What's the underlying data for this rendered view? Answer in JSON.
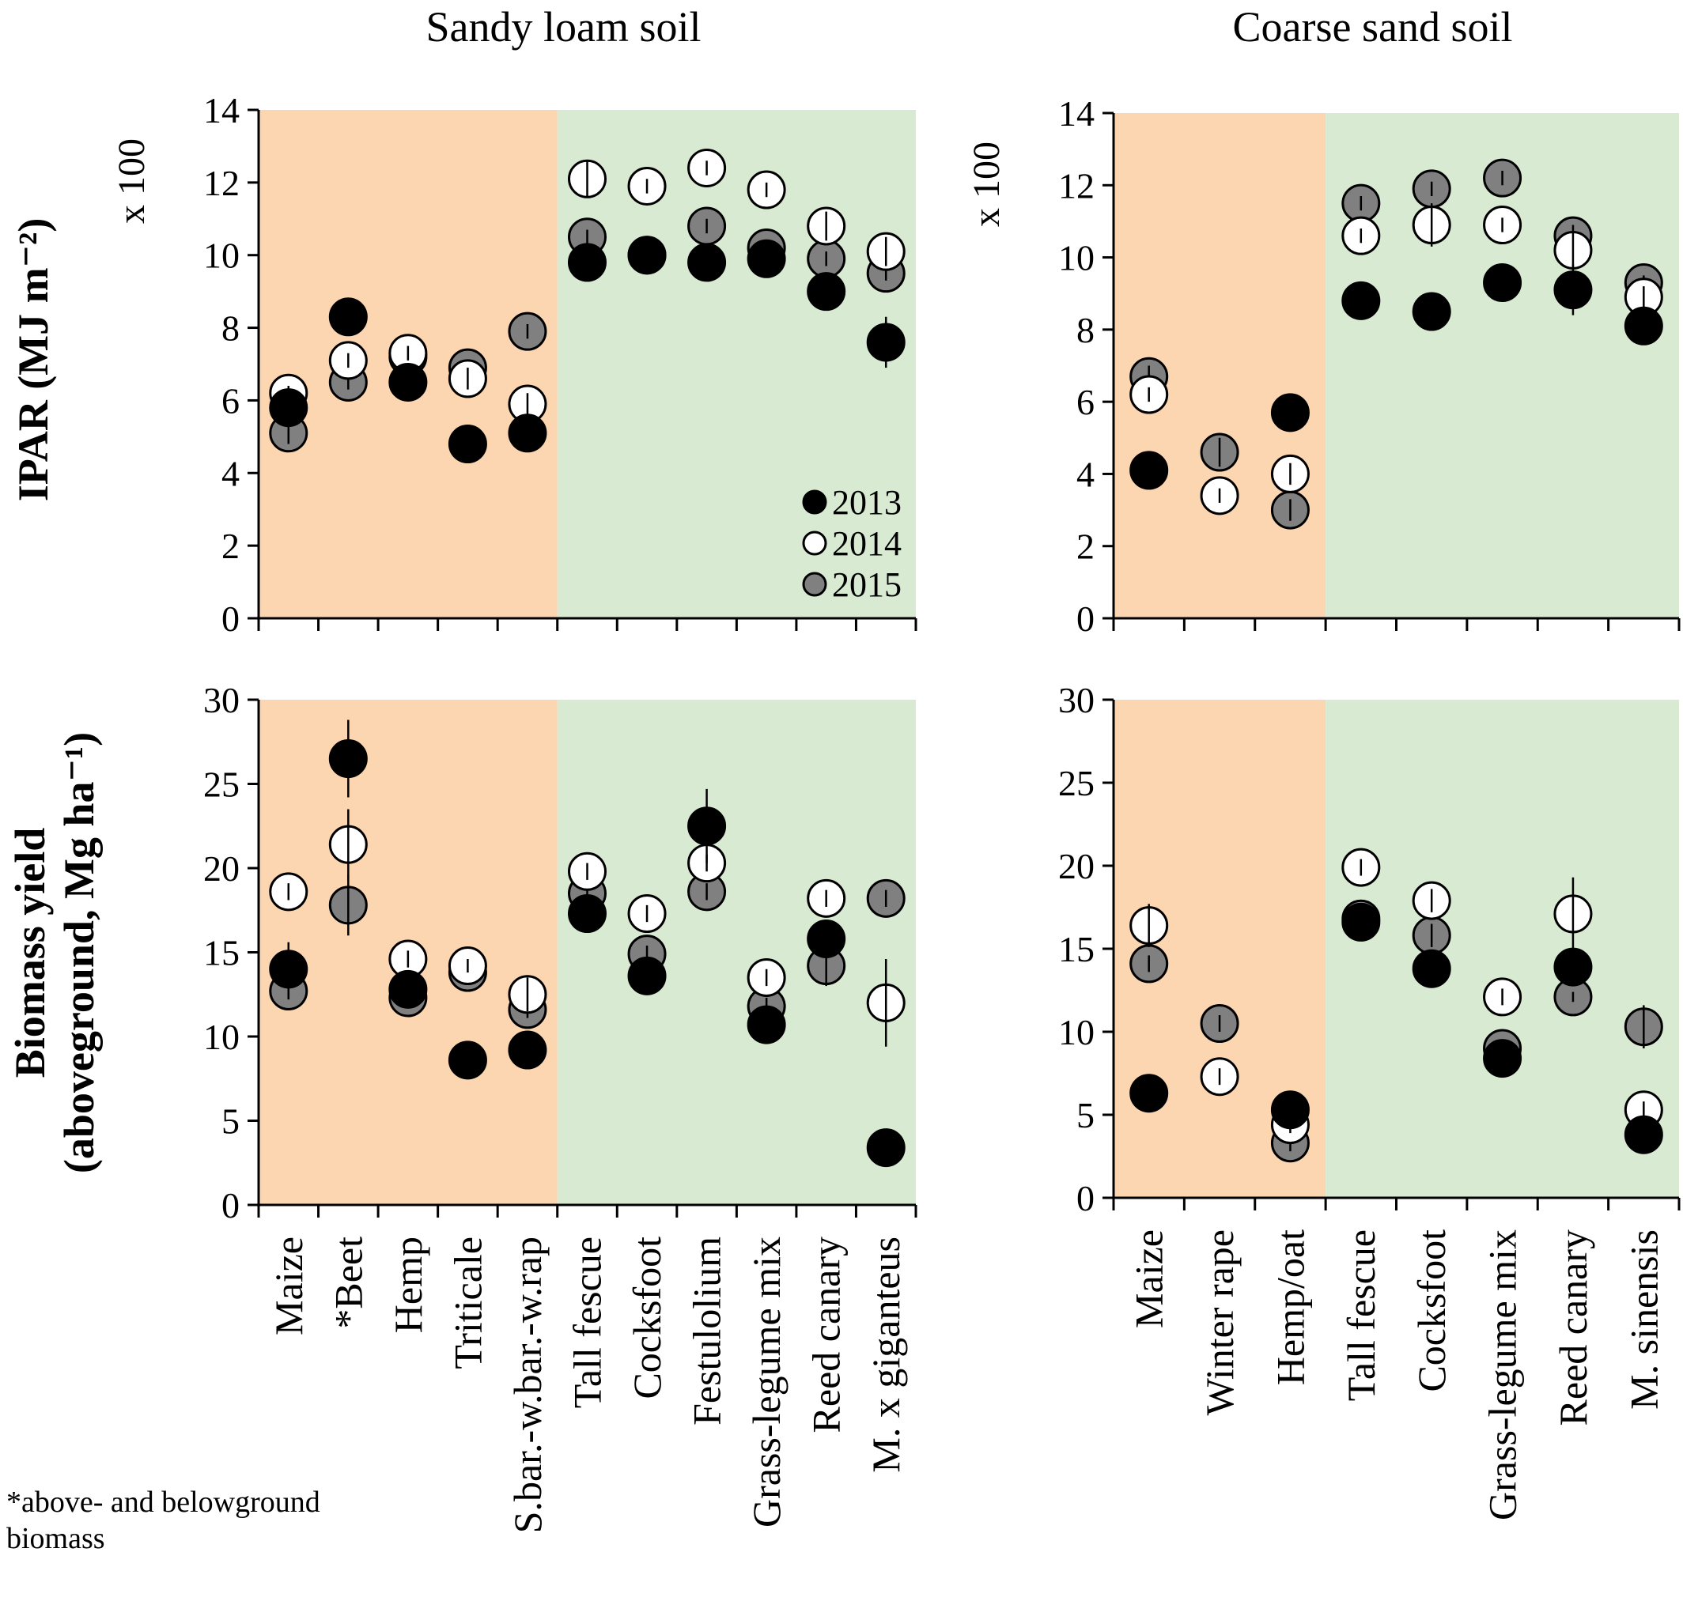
{
  "footnote": {
    "line1": "*above- and belowground",
    "line2": "biomass"
  },
  "colors": {
    "annual_bg": "#fcd5b1",
    "perennial_bg": "#d9ead3",
    "y2013": "#000000",
    "y2014": "#ffffff",
    "y2015": "#808080"
  },
  "chart_data": [
    {
      "type": "scatter",
      "title": "Sandy loam soil",
      "ylabel": "IPAR (MJ m⁻²)",
      "ylabel_multiplier": "x 100",
      "ylim": [
        0,
        14
      ],
      "yticks": [
        0,
        2,
        4,
        6,
        8,
        10,
        12,
        14
      ],
      "grid": false,
      "legend_position": "bottom-right",
      "annual_count": 5,
      "categories": [
        "Maize",
        "*Beet",
        "Hemp",
        "Triticale",
        "S.bar.-w.bar.-w.rap",
        "Tall fescue",
        "Cocksfoot",
        "Festulolium",
        "Grass-legume mix",
        "Reed canary",
        "M. x giganteus"
      ],
      "series": [
        {
          "name": "2013",
          "values": [
            5.8,
            8.3,
            6.5,
            4.8,
            5.1,
            9.8,
            10.0,
            9.8,
            9.9,
            9.0,
            7.6
          ],
          "errors": [
            0.4,
            0.2,
            0.2,
            0.2,
            0.2,
            0.2,
            0.2,
            0.2,
            0.2,
            0.2,
            0.7
          ]
        },
        {
          "name": "2014",
          "values": [
            6.2,
            7.1,
            7.3,
            6.6,
            5.9,
            12.1,
            11.9,
            12.4,
            11.8,
            10.8,
            10.1
          ],
          "errors": [
            0.2,
            0.2,
            0.2,
            0.3,
            0.3,
            0.5,
            0.2,
            0.2,
            0.2,
            0.4,
            0.4
          ]
        },
        {
          "name": "2015",
          "values": [
            5.1,
            6.5,
            7.2,
            6.9,
            7.9,
            10.5,
            10.0,
            10.8,
            10.2,
            9.9,
            9.5
          ],
          "errors": [
            0.3,
            0.2,
            0.3,
            0.2,
            0.2,
            0.2,
            0.2,
            0.2,
            0.2,
            0.2,
            0.2
          ]
        }
      ]
    },
    {
      "type": "scatter",
      "title": "Coarse sand soil",
      "ylabel": "",
      "ylabel_multiplier": "x 100",
      "ylim": [
        0,
        14
      ],
      "yticks": [
        0,
        2,
        4,
        6,
        8,
        10,
        12,
        14
      ],
      "grid": false,
      "annual_count": 3,
      "categories": [
        "Maize",
        "Winter rape",
        "Hemp/oat",
        "Tall fescue",
        "Cocksfoot",
        "Grass-legume mix",
        "Reed canary",
        "M. sinensis"
      ],
      "series": [
        {
          "name": "2013",
          "values": [
            4.1,
            null,
            5.7,
            8.8,
            8.5,
            9.3,
            9.1,
            8.1
          ],
          "errors": [
            0.2,
            0,
            0.2,
            0.2,
            0.2,
            0.2,
            0.7,
            0.2
          ]
        },
        {
          "name": "2014",
          "values": [
            6.2,
            3.4,
            4.0,
            10.6,
            10.9,
            10.9,
            10.2,
            8.9
          ],
          "errors": [
            0.2,
            0.2,
            0.3,
            0.2,
            0.6,
            0.2,
            0.5,
            0.3
          ]
        },
        {
          "name": "2015",
          "values": [
            6.7,
            4.6,
            3.0,
            11.5,
            11.9,
            12.2,
            10.6,
            9.3
          ],
          "errors": [
            0.3,
            0.4,
            0.3,
            0.2,
            0.2,
            0.2,
            0.3,
            0.2
          ]
        }
      ]
    },
    {
      "type": "scatter",
      "title": "",
      "ylabel_line1": "Biomass yield",
      "ylabel_line2": "(aboveground, Mg ha⁻¹)",
      "ylim": [
        0,
        30
      ],
      "yticks": [
        0,
        5,
        10,
        15,
        20,
        25,
        30
      ],
      "grid": false,
      "annual_count": 5,
      "categories": [
        "Maize",
        "*Beet",
        "Hemp",
        "Triticale",
        "S.bar.-w.bar.-w.rap",
        "Tall fescue",
        "Cocksfoot",
        "Festulolium",
        "Grass-legume mix",
        "Reed canary",
        "M. x giganteus"
      ],
      "series": [
        {
          "name": "2013",
          "values": [
            14.0,
            26.5,
            12.8,
            8.6,
            9.2,
            17.3,
            13.6,
            22.5,
            10.7,
            15.8,
            3.4
          ],
          "errors": [
            1.6,
            2.3,
            0.5,
            0.4,
            0.5,
            0.4,
            0.5,
            2.2,
            0.5,
            0.5,
            0.3
          ]
        },
        {
          "name": "2014",
          "values": [
            18.6,
            21.4,
            14.6,
            14.2,
            12.5,
            19.8,
            17.3,
            20.3,
            13.5,
            18.2,
            12.0
          ],
          "errors": [
            0.5,
            2.1,
            0.5,
            0.4,
            1.0,
            0.5,
            0.5,
            0.5,
            0.5,
            0.5,
            2.6
          ]
        },
        {
          "name": "2015",
          "values": [
            12.7,
            17.8,
            12.3,
            13.8,
            11.6,
            18.5,
            14.9,
            18.6,
            11.8,
            14.2,
            18.2
          ],
          "errors": [
            0.5,
            1.8,
            0.5,
            0.5,
            0.5,
            0.5,
            0.5,
            0.5,
            0.5,
            1.2,
            0.5
          ]
        }
      ]
    },
    {
      "type": "scatter",
      "title": "",
      "ylabel": "",
      "ylim": [
        0,
        30
      ],
      "yticks": [
        0,
        5,
        10,
        15,
        20,
        25,
        30
      ],
      "grid": false,
      "annual_count": 3,
      "categories": [
        "Maize",
        "Winter rape",
        "Hemp/oat",
        "Tall fescue",
        "Cocksfoot",
        "Grass-legume mix",
        "Reed canary",
        "M. sinensis"
      ],
      "series": [
        {
          "name": "2013",
          "values": [
            6.3,
            null,
            5.3,
            16.6,
            13.8,
            8.4,
            13.9,
            3.8
          ],
          "errors": [
            0.3,
            0,
            0.5,
            0.5,
            0.5,
            0.3,
            0.5,
            0.5
          ]
        },
        {
          "name": "2014",
          "values": [
            16.4,
            7.3,
            4.4,
            19.9,
            17.9,
            12.1,
            17.1,
            5.3
          ],
          "errors": [
            1.3,
            0.5,
            0.5,
            0.5,
            0.7,
            0.5,
            2.2,
            0.5
          ]
        },
        {
          "name": "2015",
          "values": [
            14.1,
            10.5,
            3.3,
            16.8,
            15.8,
            9.0,
            12.1,
            10.3
          ],
          "errors": [
            0.5,
            0.5,
            0.5,
            0.3,
            0.7,
            0.5,
            0.3,
            1.3
          ]
        }
      ]
    }
  ]
}
